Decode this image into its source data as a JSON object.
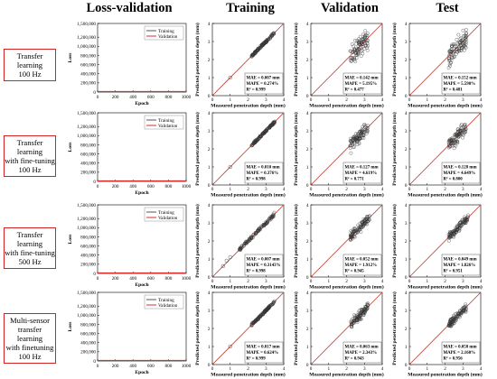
{
  "column_headers": [
    "Loss-validation",
    "Training",
    "Validation",
    "Test"
  ],
  "row_labels": [
    [
      "Transfer learning",
      "100 Hz"
    ],
    [
      "Transfer learning",
      "with fine-tuning",
      "100 Hz"
    ],
    [
      "Transfer learning",
      "with fine-tuning",
      "500 Hz"
    ],
    [
      "Multi-sensor",
      "transfer learning",
      "with finetuning",
      "100 Hz"
    ]
  ],
  "colors": {
    "training": "#555555",
    "validation": "#d23232",
    "identity_line": "#c0392b",
    "row_label_border": "#d22222"
  },
  "chart_data": [
    {
      "type": "line",
      "panel": "loss",
      "xlabel": "Epoch",
      "ylabel": "Loss",
      "xlim": [
        0,
        1000
      ],
      "ylim": [
        0,
        1500000
      ],
      "xticks": [
        "0",
        "200",
        "400",
        "600",
        "800",
        "1000"
      ],
      "yticks": [
        "0",
        "200,000",
        "400,000",
        "600,000",
        "800,000",
        "1,000,000",
        "1,200,000",
        "1,500,000"
      ],
      "legend": [
        "Training",
        "Validation"
      ],
      "legend_position": "top-right",
      "series": [
        {
          "name": "Training",
          "x": [
            0,
            5,
            1000
          ],
          "y": [
            0,
            0,
            0
          ]
        },
        {
          "name": "Validation",
          "x": [
            0,
            5,
            1000
          ],
          "y": [
            0,
            0,
            0
          ]
        }
      ]
    },
    {
      "type": "scatter",
      "panel": "parity",
      "xlabel": "Measured penetration depth (mm)",
      "ylabel": "Predicted penetration depth (mm)",
      "xlim": [
        0,
        4
      ],
      "ylim": [
        0,
        4
      ],
      "ticks": [
        "0",
        "1",
        "2",
        "3",
        "4"
      ],
      "panels": [
        {
          "row": 0,
          "col": "Training",
          "stats": [
            "MAE = 0.007 mm",
            "MAPE = 0.274%",
            "R² = 0.999"
          ],
          "cluster": [
            2.2,
            3.5
          ],
          "noise": 0.03,
          "outliers": [
            [
              1.0,
              1.0
            ]
          ]
        },
        {
          "row": 0,
          "col": "Validation",
          "stats": [
            "MAE = 0.142 mm",
            "MAPE = 5.195%",
            "R² = 0.477"
          ],
          "cluster": [
            2.2,
            3.2
          ],
          "noise": 0.28,
          "outliers": []
        },
        {
          "row": 0,
          "col": "Test",
          "stats": [
            "MAE = 0.152 mm",
            "MAPE = 5.590%",
            "R² = 0.481"
          ],
          "cluster": [
            2.2,
            3.2
          ],
          "noise": 0.27,
          "outliers": []
        },
        {
          "row": 1,
          "col": "Training",
          "stats": [
            "MAE = 0.010 mm",
            "MAPE = 0.376%",
            "R² = 0.998"
          ],
          "cluster": [
            2.2,
            3.5
          ],
          "noise": 0.03,
          "outliers": [
            [
              1.0,
              1.0
            ]
          ]
        },
        {
          "row": 1,
          "col": "Validation",
          "stats": [
            "MAE = 0.127 mm",
            "MAPE = 4.619%",
            "R² = 0.771"
          ],
          "cluster": [
            2.2,
            3.2
          ],
          "noise": 0.2,
          "outliers": []
        },
        {
          "row": 1,
          "col": "Test",
          "stats": [
            "MAE = 0.128 mm",
            "MAPE = 4.649%",
            "R² = 0.800"
          ],
          "cluster": [
            2.2,
            3.2
          ],
          "noise": 0.19,
          "outliers": []
        },
        {
          "row": 2,
          "col": "Training",
          "stats": [
            "MAE = 0.007 mm",
            "MAPE = 0.3143%",
            "R² = 0.998"
          ],
          "cluster": [
            1.5,
            3.5
          ],
          "noise": 0.04,
          "outliers": [
            [
              0.6,
              0.6
            ],
            [
              0.8,
              0.9
            ],
            [
              1.0,
              1.1
            ]
          ]
        },
        {
          "row": 2,
          "col": "Validation",
          "stats": [
            "MAE = 0.052 mm",
            "MAPE = 1.912%",
            "R² = 0.945"
          ],
          "cluster": [
            2.2,
            3.3
          ],
          "noise": 0.12,
          "outliers": []
        },
        {
          "row": 2,
          "col": "Test",
          "stats": [
            "MAE = 0.049 mm",
            "MAPE = 1.826%",
            "R² = 0.951"
          ],
          "cluster": [
            2.2,
            3.3
          ],
          "noise": 0.11,
          "outliers": []
        },
        {
          "row": 3,
          "col": "Training",
          "stats": [
            "MAE = 0.017 mm",
            "MAPE = 0.624%",
            "R² = 0.999"
          ],
          "cluster": [
            2.2,
            3.5
          ],
          "noise": 0.03,
          "outliers": [
            [
              1.0,
              1.0
            ]
          ]
        },
        {
          "row": 3,
          "col": "Validation",
          "stats": [
            "MAE = 0.063 mm",
            "MAPE = 2.343%",
            "R² = 0.943"
          ],
          "cluster": [
            2.2,
            3.2
          ],
          "noise": 0.12,
          "outliers": []
        },
        {
          "row": 3,
          "col": "Test",
          "stats": [
            "MAE = 0.058 mm",
            "MAPE = 2.160%",
            "R² = 0.956"
          ],
          "cluster": [
            2.2,
            3.2
          ],
          "noise": 0.11,
          "outliers": []
        }
      ]
    }
  ]
}
